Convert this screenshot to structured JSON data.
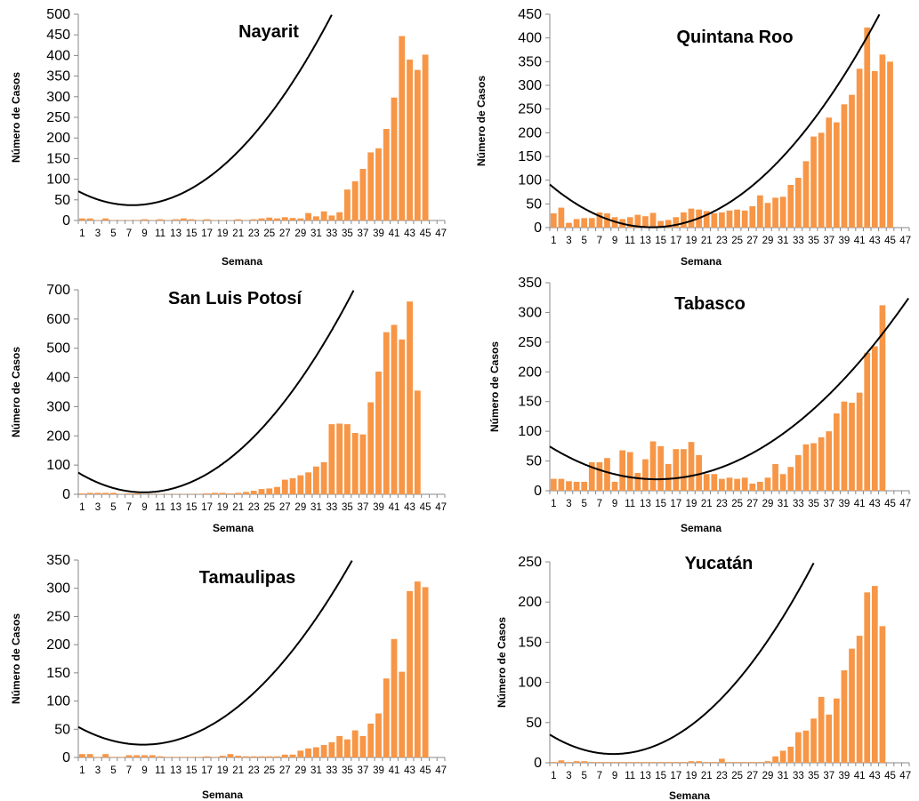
{
  "chart_data": [
    {
      "type": "bar",
      "title": "Nayarit",
      "xlabel": "Semana",
      "ylabel": "Número de Casos",
      "ylim": [
        0,
        500
      ],
      "yticks": [
        0,
        50,
        100,
        150,
        200,
        250,
        300,
        350,
        400,
        450,
        500
      ],
      "weeks": 47,
      "bar_color": "#F79646",
      "trend_color": "#000000",
      "values": [
        5,
        5,
        1,
        5,
        1,
        1,
        1,
        1,
        3,
        1,
        3,
        1,
        3,
        5,
        3,
        1,
        3,
        1,
        1,
        1,
        3,
        1,
        3,
        5,
        7,
        5,
        8,
        6,
        5,
        18,
        10,
        22,
        12,
        20,
        75,
        95,
        125,
        165,
        175,
        222,
        298,
        447,
        390,
        365,
        402
      ],
      "trend": {
        "type": "polynomial",
        "a": 0.7053,
        "b": -10.47,
        "c": 75.95
      }
    },
    {
      "type": "bar",
      "title": "Quintana Roo",
      "xlabel": "Semana",
      "ylabel": "Número de Casos",
      "ylim": [
        0,
        450
      ],
      "yticks": [
        0,
        50,
        100,
        150,
        200,
        250,
        300,
        350,
        400,
        450
      ],
      "weeks": 47,
      "bar_color": "#F79646",
      "trend_color": "#000000",
      "values": [
        30,
        42,
        10,
        18,
        20,
        20,
        32,
        30,
        22,
        18,
        22,
        27,
        24,
        31,
        14,
        16,
        22,
        32,
        40,
        38,
        35,
        30,
        32,
        36,
        38,
        36,
        45,
        68,
        52,
        63,
        65,
        90,
        105,
        140,
        192,
        200,
        232,
        222,
        260,
        280,
        335,
        422,
        330,
        365,
        350
      ],
      "trend": {
        "type": "polynomial",
        "a": 0.5064,
        "b": -14.01,
        "c": 97.62
      }
    },
    {
      "type": "bar",
      "title": "San Luis Potosí",
      "xlabel": "Semana",
      "ylabel": "Número de Casos",
      "ylim": [
        0,
        700
      ],
      "yticks": [
        0,
        100,
        200,
        300,
        400,
        500,
        600,
        700
      ],
      "weeks": 47,
      "bar_color": "#F79646",
      "trend_color": "#000000",
      "values": [
        3,
        5,
        5,
        5,
        5,
        1,
        3,
        3,
        1,
        1,
        1,
        1,
        1,
        1,
        1,
        1,
        3,
        5,
        5,
        3,
        5,
        8,
        12,
        18,
        20,
        25,
        50,
        55,
        65,
        75,
        95,
        110,
        240,
        242,
        240,
        210,
        205,
        315,
        420,
        555,
        580,
        530,
        660,
        355
      ],
      "trend": {
        "type": "polynomial",
        "a": 0.9554,
        "b": -17.01,
        "c": 82.46
      }
    },
    {
      "type": "bar",
      "title": "Tabasco",
      "xlabel": "Semana",
      "ylabel": "Número de Casos",
      "ylim": [
        0,
        350
      ],
      "yticks": [
        0,
        50,
        100,
        150,
        200,
        250,
        300,
        350
      ],
      "weeks": 47,
      "bar_color": "#F79646",
      "trend_color": "#000000",
      "values": [
        20,
        20,
        16,
        15,
        15,
        48,
        48,
        55,
        15,
        68,
        65,
        30,
        53,
        83,
        75,
        45,
        70,
        70,
        82,
        60,
        28,
        28,
        20,
        22,
        20,
        22,
        12,
        15,
        22,
        45,
        28,
        40,
        60,
        78,
        80,
        90,
        100,
        130,
        150,
        148,
        165,
        232,
        243,
        312
      ],
      "trend": {
        "type": "polynomial",
        "a": 0.2812,
        "b": -8.151,
        "c": 78.37
      }
    },
    {
      "type": "bar",
      "title": "Tamaulipas",
      "xlabel": "Semana",
      "ylabel": "Número de Casos",
      "ylim": [
        0,
        350
      ],
      "yticks": [
        0,
        50,
        100,
        150,
        200,
        250,
        300,
        350
      ],
      "weeks": 47,
      "bar_color": "#F79646",
      "trend_color": "#000000",
      "values": [
        6,
        6,
        1,
        6,
        1,
        1,
        4,
        4,
        4,
        4,
        2,
        1,
        1,
        1,
        1,
        1,
        2,
        1,
        3,
        6,
        3,
        2,
        2,
        2,
        2,
        2,
        5,
        5,
        12,
        16,
        18,
        22,
        27,
        38,
        32,
        48,
        38,
        60,
        78,
        140,
        210,
        152,
        295,
        312,
        302
      ],
      "trend": {
        "type": "polynomial",
        "a": 0.4549,
        "b": -8.018,
        "c": 58.01
      }
    },
    {
      "type": "bar",
      "title": "Yucatán",
      "xlabel": "Semana",
      "ylabel": "Número de Casos",
      "ylim": [
        0,
        250
      ],
      "yticks": [
        0,
        50,
        100,
        150,
        200,
        250
      ],
      "weeks": 47,
      "bar_color": "#F79646",
      "trend_color": "#000000",
      "values": [
        1,
        3,
        1,
        2,
        2,
        1,
        1,
        1,
        1,
        1,
        1,
        1,
        1,
        1,
        1,
        1,
        1,
        1,
        2,
        2,
        1,
        1,
        5,
        1,
        1,
        1,
        1,
        1,
        2,
        8,
        15,
        20,
        38,
        40,
        55,
        82,
        60,
        80,
        115,
        142,
        158,
        212,
        220,
        170
      ],
      "trend": {
        "type": "polynomial",
        "a": 0.3467,
        "b": -6.118,
        "c": 37.92
      }
    }
  ]
}
